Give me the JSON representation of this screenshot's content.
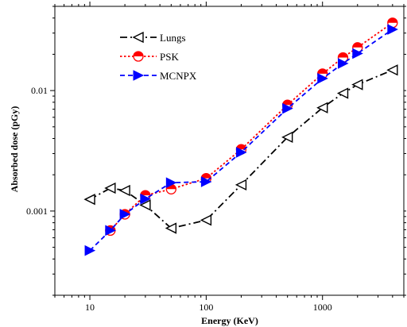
{
  "chart_data": {
    "type": "line",
    "title": "",
    "xlabel": "Energy (KeV)",
    "ylabel": "Absorbed dose (pGy)",
    "xscale": "log",
    "yscale": "log",
    "xlim": [
      5,
      5000
    ],
    "ylim": [
      0.0002,
      0.05
    ],
    "xticks": [
      {
        "value": 10,
        "label": "10"
      },
      {
        "value": 100,
        "label": "100"
      },
      {
        "value": 1000,
        "label": "1000"
      }
    ],
    "yticks": [
      {
        "value": 0.001,
        "label": "0.001"
      },
      {
        "value": 0.01,
        "label": "0.01"
      }
    ],
    "grid": false,
    "legend_position": "top-left",
    "series": [
      {
        "name": "Lungs",
        "color": "#000000",
        "line_style": "dash-dot",
        "marker": "left-triangle-open",
        "x": [
          10,
          15,
          20,
          30,
          50,
          100,
          200,
          500,
          1000,
          1500,
          2000,
          4000
        ],
        "y": [
          0.00125,
          0.00155,
          0.00148,
          0.00112,
          0.00072,
          0.00084,
          0.00165,
          0.0041,
          0.0072,
          0.0095,
          0.0112,
          0.0148
        ]
      },
      {
        "name": "PSK",
        "color": "#ff0000",
        "line_style": "dotted",
        "marker": "half-filled-circle",
        "x": [
          15,
          20,
          30,
          50,
          100,
          200,
          500,
          1000,
          1500,
          2000,
          4000
        ],
        "y": [
          0.00069,
          0.00094,
          0.00135,
          0.00152,
          0.00187,
          0.00325,
          0.0076,
          0.0138,
          0.0188,
          0.0228,
          0.0365
        ]
      },
      {
        "name": "MCNPX",
        "color": "#0000ff",
        "line_style": "dashed",
        "marker": "right-triangle-filled",
        "x": [
          10,
          15,
          20,
          30,
          50,
          100,
          200,
          500,
          1000,
          1500,
          2000,
          4000
        ],
        "y": [
          0.00047,
          0.00069,
          0.00094,
          0.00126,
          0.00172,
          0.00175,
          0.00307,
          0.0071,
          0.0126,
          0.0168,
          0.0203,
          0.0322
        ]
      }
    ]
  }
}
